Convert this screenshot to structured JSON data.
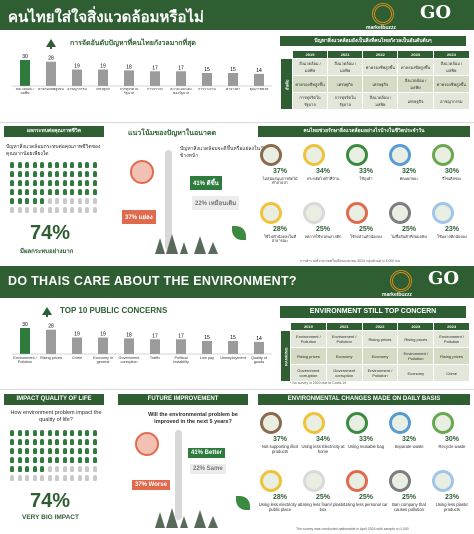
{
  "colors": {
    "brand_green": "#2f5e33",
    "accent_gold": "#d18d1e",
    "worse_red": "#e06a4e",
    "bar_highlight": "#2f7a3d",
    "bar_grey": "#9b9b9b"
  },
  "logos": {
    "marketbuzzz": "marketbuzzz",
    "go": "GO"
  },
  "th": {
    "title": "คนไทยใส่ใจสิ่งแวดล้อมหรือไม่",
    "concerns_title": "การจัดอันดับปัญหาที่คนไทยกังวลมากที่สุด",
    "concerns": [
      {
        "value": "30",
        "label": "สิ่งแวดล้อม / มลพิษ"
      },
      {
        "value": "28",
        "label": "ค่าครองชีพสูงขึ้น"
      },
      {
        "value": "19",
        "label": "อาชญากรรม"
      },
      {
        "value": "19",
        "label": "เศรษฐกิจ"
      },
      {
        "value": "18",
        "label": "การทุจริตในรัฐบาล"
      },
      {
        "value": "17",
        "label": "การจราจร"
      },
      {
        "value": "17",
        "label": "ความไม่มั่นคงของรัฐบาล"
      },
      {
        "value": "15",
        "label": "การว่างงาน"
      },
      {
        "value": "15",
        "label": "ค่าจ้างต่ำ"
      },
      {
        "value": "14",
        "label": "คุณภาพชีวิต"
      }
    ],
    "still_title": "ปัญหาสิ่งแวดล้อมยังเป็นสิ่งที่คนไทยกังวลเป็นอันดับต้นๆ",
    "years": [
      "2019",
      "2021",
      "2022",
      "2023",
      "2024"
    ],
    "rank_label": "อันดับ",
    "rows": [
      [
        "สิ่งแวดล้อม / มลพิษ",
        "สิ่งแวดล้อม / มลพิษ",
        "ค่าครองชีพสูงขึ้น",
        "ค่าครองชีพสูงขึ้น",
        "สิ่งแวดล้อม / มลพิษ"
      ],
      [
        "ค่าครองชีพสูงขึ้น",
        "เศรษฐกิจ",
        "เศรษฐกิจ",
        "สิ่งแวดล้อม / มลพิษ",
        "ค่าครองชีพสูงขึ้น"
      ],
      [
        "การทุจริตในรัฐบาล",
        "การทุจริตในรัฐบาล",
        "สิ่งแวดล้อม / มลพิษ",
        "เศรษฐกิจ",
        "อาชญากรรม"
      ]
    ],
    "impact_title": "ผลกระทบต่อคุณภาพชีวิต",
    "impact_question": "ปัญหาสิ่งแวดล้อมกระทบต่อคุณภาพชีวิตของคุณมากน้อยเพียงใด",
    "impact_value": "74%",
    "impact_label": "มีผลกระทบอย่างมาก",
    "future_title": "แนวโน้มของปัญหาในอนาคต",
    "future_question": "ปัญหาสิ่งแวดล้อมจะดีขึ้นหรือแย่ลงใน 5 ปีข้างหน้า",
    "better": "41% ดีขึ้น",
    "same": "22% เหมือนเดิม",
    "worse": "37% แย่ลง",
    "changes_title": "คนไทยช่วยรักษาสิ่งแวดล้อมอย่างไรบ้างในชีวิตประจำวัน",
    "changes": [
      {
        "pct": "37%",
        "label": "ไม่สนับสนุนการตัดไม้ทำลายป่า"
      },
      {
        "pct": "34%",
        "label": "ประหยัดไฟฟ้าที่บ้าน"
      },
      {
        "pct": "33%",
        "label": "ใช้ถุงผ้า"
      },
      {
        "pct": "32%",
        "label": "คัดแยกขยะ"
      },
      {
        "pct": "30%",
        "label": "รีไซเคิลขยะ"
      },
      {
        "pct": "28%",
        "label": "ใช้ไฟฟ้าน้อยลงในที่สาธารณะ"
      },
      {
        "pct": "25%",
        "label": "ลดการใช้ขวดพลาสติก"
      },
      {
        "pct": "25%",
        "label": "ใช้รถส่วนตัวน้อยลง"
      },
      {
        "pct": "25%",
        "label": "ไม่ซื้อสินค้าที่ก่อมลพิษ"
      },
      {
        "pct": "23%",
        "label": "ใช้พลาสติกน้อยลง"
      }
    ],
    "note": "การสำรวจทั่วประเทศในเดือนเมษายน 2024 กลุ่มตัวอย่าง 1,000 คน"
  },
  "en": {
    "title": "DO THAIS CARE ABOUT THE ENVIRONMENT?",
    "concerns_title": "TOP 10 PUBLIC CONCERNS",
    "concerns": [
      {
        "value": "30",
        "label": "Environment / Pollution"
      },
      {
        "value": "28",
        "label": "Rising prices"
      },
      {
        "value": "19",
        "label": "Crime"
      },
      {
        "value": "19",
        "label": "Economy in general"
      },
      {
        "value": "18",
        "label": "Government corruption"
      },
      {
        "value": "17",
        "label": "Traffic"
      },
      {
        "value": "17",
        "label": "Political Instability"
      },
      {
        "value": "15",
        "label": "Low pay"
      },
      {
        "value": "15",
        "label": "Unemployment"
      },
      {
        "value": "14",
        "label": "Quality of goods"
      }
    ],
    "still_title": "ENVIRONMENT STILL TOP CONCERN",
    "years": [
      "2019",
      "2021",
      "2022",
      "2023",
      "2024"
    ],
    "rank_label": "RANKING",
    "rows": [
      [
        "Environment / Pollution",
        "Environment / Pollution",
        "Rising prices",
        "Rising prices",
        "Environment / Pollution"
      ],
      [
        "Rising prices",
        "Economy",
        "Economy",
        "Environment / Pollution",
        "Rising prices"
      ],
      [
        "Government corruption",
        "Government corruption",
        "Environment / Pollution",
        "Economy",
        "Crime"
      ]
    ],
    "covid_note": "* No survey in 2020 due to Covid-19",
    "impact_title": "IMPACT QUALITY OF LIFE",
    "impact_question": "How environment problem impact the quality of life?",
    "impact_value": "74%",
    "impact_label": "VERY BIG IMPACT",
    "future_title": "FUTURE IMPROVEMENT",
    "future_question": "Will the environmental problem be improved in the next 5 years?",
    "better": "41% Better",
    "same": "22% Same",
    "worse": "37% Worse",
    "changes_title": "ENVIRONMENTAL CHANGES MADE ON DAILY BASIS",
    "changes": [
      {
        "pct": "37%",
        "label": "Not supporting illicit products"
      },
      {
        "pct": "34%",
        "label": "Using less Electricity at home"
      },
      {
        "pct": "33%",
        "label": "Using reusable bag"
      },
      {
        "pct": "32%",
        "label": "Separate waste"
      },
      {
        "pct": "30%",
        "label": "Recycle waste"
      },
      {
        "pct": "28%",
        "label": "Using less electricity at public place"
      },
      {
        "pct": "25%",
        "label": "Using less foam/ plastic box"
      },
      {
        "pct": "25%",
        "label": "Using less personal car"
      },
      {
        "pct": "25%",
        "label": "Ban company that causes pollution"
      },
      {
        "pct": "23%",
        "label": "Using less plastic products"
      }
    ],
    "note": "The survey was conducted nationwide in April 2024 with sample n=1,000"
  },
  "chart_data": [
    {
      "type": "bar",
      "title": "TOP 10 PUBLIC CONCERNS",
      "categories": [
        "Environment / Pollution",
        "Rising prices",
        "Crime",
        "Economy in general",
        "Government corruption",
        "Traffic",
        "Political Instability",
        "Low pay",
        "Unemployment",
        "Quality of goods"
      ],
      "values": [
        30,
        28,
        19,
        19,
        18,
        17,
        17,
        15,
        15,
        14
      ],
      "ylim": [
        0,
        30
      ]
    },
    {
      "type": "bar",
      "title": "การจัดอันดับปัญหาที่คนไทยกังวลมากที่สุด",
      "categories": [
        "สิ่งแวดล้อม / มลพิษ",
        "ค่าครองชีพสูงขึ้น",
        "อาชญากรรม",
        "เศรษฐกิจ",
        "การทุจริตในรัฐบาล",
        "การจราจร",
        "ความไม่มั่นคงของรัฐบาล",
        "การว่างงาน",
        "ค่าจ้างต่ำ",
        "คุณภาพชีวิต"
      ],
      "values": [
        30,
        28,
        19,
        19,
        18,
        17,
        17,
        15,
        15,
        14
      ],
      "ylim": [
        0,
        30
      ]
    }
  ]
}
